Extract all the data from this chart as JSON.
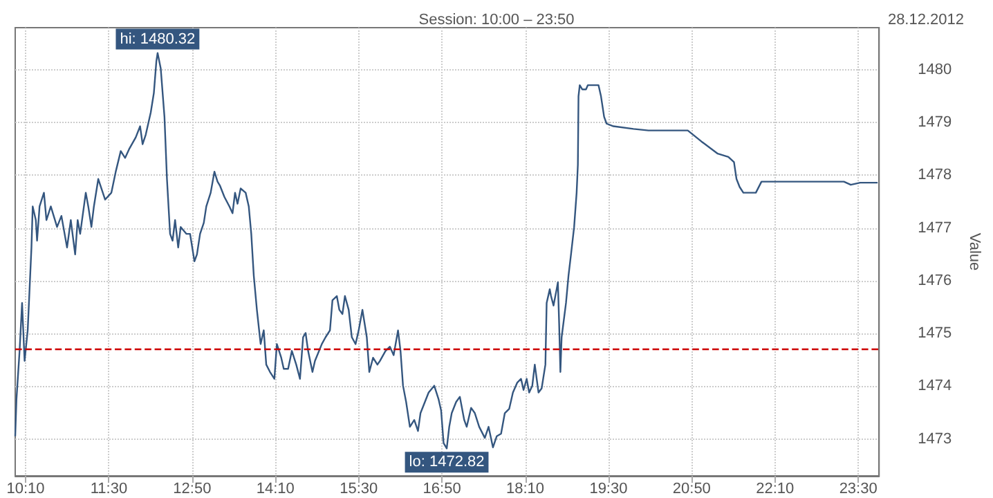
{
  "chart_data": {
    "type": "line",
    "subtitle": "Session: 10:00 – 23:50",
    "ylabel": "Value",
    "annotations": [
      "28.12.2012",
      {
        "text": "hi: 1480.32",
        "x": 12.28,
        "y": 1480.32
      },
      {
        "text": "lo: 1472.82",
        "x": 16.91,
        "y": 1472.82
      }
    ],
    "xlim": [
      10,
      23.8333
    ],
    "xticks": [
      {
        "value": 10.1667,
        "label": "10:10"
      },
      {
        "value": 11.5,
        "label": "11:30"
      },
      {
        "value": 12.8333,
        "label": "12:50"
      },
      {
        "value": 14.1667,
        "label": "14:10"
      },
      {
        "value": 15.5,
        "label": "15:30"
      },
      {
        "value": 16.8333,
        "label": "16:50"
      },
      {
        "value": 18.1667,
        "label": "18:10"
      },
      {
        "value": 19.5,
        "label": "19:30"
      },
      {
        "value": 20.8333,
        "label": "20:50"
      },
      {
        "value": 22.1667,
        "label": "22:10"
      },
      {
        "value": 23.5,
        "label": "23:30"
      }
    ],
    "ylim": [
      1472.3,
      1480.8
    ],
    "yticks": [
      1473,
      1474,
      1475,
      1476,
      1477,
      1478,
      1479,
      1480
    ],
    "grid": true,
    "marker": "none",
    "line_style": "solid",
    "ref_lines": [
      {
        "axis": "y",
        "value": 1474.7,
        "label": null,
        "color": "#cc0000",
        "line_style": "dashed"
      }
    ],
    "series": [
      {
        "color": "#34567f",
        "x": [
          10.0,
          10.02,
          10.07,
          10.11,
          10.15,
          10.2,
          10.26,
          10.28,
          10.33,
          10.35,
          10.39,
          10.46,
          10.5,
          10.57,
          10.67,
          10.74,
          10.83,
          10.89,
          10.96,
          11.0,
          11.04,
          11.13,
          11.17,
          11.22,
          11.26,
          11.33,
          11.44,
          11.54,
          11.61,
          11.69,
          11.76,
          11.83,
          11.93,
          12.0,
          12.04,
          12.09,
          12.17,
          12.22,
          12.26,
          12.28,
          12.33,
          12.39,
          12.43,
          12.48,
          12.52,
          12.56,
          12.61,
          12.65,
          12.74,
          12.8,
          12.87,
          12.91,
          12.96,
          13.02,
          13.06,
          13.13,
          13.19,
          13.24,
          13.28,
          13.35,
          13.43,
          13.48,
          13.52,
          13.56,
          13.61,
          13.69,
          13.74,
          13.78,
          13.82,
          13.87,
          13.93,
          13.98,
          14.02,
          14.08,
          14.15,
          14.19,
          14.26,
          14.3,
          14.37,
          14.43,
          14.5,
          14.56,
          14.61,
          14.65,
          14.69,
          14.76,
          14.8,
          14.91,
          14.97,
          15.04,
          15.08,
          15.15,
          15.19,
          15.24,
          15.28,
          15.34,
          15.39,
          15.45,
          15.5,
          15.56,
          15.63,
          15.67,
          15.73,
          15.8,
          15.84,
          15.93,
          16.0,
          16.06,
          16.13,
          16.17,
          16.21,
          16.26,
          16.32,
          16.39,
          16.45,
          16.49,
          16.56,
          16.62,
          16.71,
          16.78,
          16.82,
          16.86,
          16.91,
          16.95,
          16.99,
          17.06,
          17.12,
          17.19,
          17.23,
          17.3,
          17.36,
          17.43,
          17.52,
          17.58,
          17.65,
          17.71,
          17.78,
          17.84,
          17.91,
          17.97,
          18.04,
          18.1,
          18.14,
          18.19,
          18.23,
          18.28,
          18.32,
          18.38,
          18.43,
          18.49,
          18.51,
          18.56,
          18.58,
          18.62,
          18.67,
          18.69,
          18.71,
          18.73,
          18.75,
          18.82,
          18.86,
          18.9,
          18.95,
          18.99,
          19.01,
          19.02,
          19.04,
          19.08,
          19.14,
          19.17,
          19.34,
          19.38,
          19.43,
          19.47,
          19.58,
          19.9,
          20.14,
          20.77,
          20.99,
          21.25,
          21.42,
          21.51,
          21.55,
          21.6,
          21.66,
          21.71,
          21.86,
          21.95,
          22.29,
          23.27,
          23.38,
          23.53,
          23.81
        ],
        "values": [
          1473.05,
          1473.75,
          1474.67,
          1475.58,
          1474.48,
          1475.06,
          1476.63,
          1477.41,
          1477.15,
          1476.76,
          1477.41,
          1477.67,
          1477.15,
          1477.41,
          1477.02,
          1477.23,
          1476.63,
          1477.15,
          1476.5,
          1477.15,
          1476.89,
          1477.67,
          1477.41,
          1477.02,
          1477.41,
          1477.93,
          1477.54,
          1477.67,
          1478.07,
          1478.46,
          1478.33,
          1478.51,
          1478.72,
          1478.93,
          1478.59,
          1478.77,
          1479.19,
          1479.56,
          1480.16,
          1480.32,
          1480.03,
          1479.11,
          1477.93,
          1476.89,
          1476.76,
          1477.15,
          1476.63,
          1477.02,
          1476.89,
          1476.89,
          1476.37,
          1476.5,
          1476.89,
          1477.1,
          1477.41,
          1477.67,
          1478.07,
          1477.88,
          1477.8,
          1477.59,
          1477.41,
          1477.28,
          1477.67,
          1477.46,
          1477.75,
          1477.67,
          1477.41,
          1476.89,
          1476.1,
          1475.45,
          1474.8,
          1475.06,
          1474.41,
          1474.27,
          1474.14,
          1474.8,
          1474.54,
          1474.33,
          1474.33,
          1474.67,
          1474.41,
          1474.14,
          1474.93,
          1475.01,
          1474.67,
          1474.27,
          1474.48,
          1474.8,
          1474.93,
          1475.06,
          1475.63,
          1475.71,
          1475.45,
          1475.37,
          1475.71,
          1475.45,
          1474.93,
          1474.8,
          1475.06,
          1475.45,
          1474.93,
          1474.27,
          1474.54,
          1474.41,
          1474.48,
          1474.67,
          1474.75,
          1474.59,
          1475.06,
          1474.67,
          1474.01,
          1473.7,
          1473.23,
          1473.36,
          1473.15,
          1473.49,
          1473.7,
          1473.88,
          1474.01,
          1473.75,
          1473.54,
          1472.92,
          1472.82,
          1473.23,
          1473.49,
          1473.7,
          1473.8,
          1473.36,
          1473.23,
          1473.59,
          1473.49,
          1473.23,
          1473.02,
          1473.23,
          1472.84,
          1473.05,
          1473.1,
          1473.49,
          1473.57,
          1473.88,
          1474.07,
          1474.14,
          1473.93,
          1474.14,
          1473.88,
          1474.01,
          1474.41,
          1473.88,
          1473.96,
          1474.41,
          1475.58,
          1475.84,
          1475.71,
          1475.53,
          1475.84,
          1475.97,
          1475.19,
          1474.27,
          1474.93,
          1475.58,
          1476.1,
          1476.5,
          1477.02,
          1477.67,
          1478.2,
          1479.5,
          1479.71,
          1479.63,
          1479.63,
          1479.71,
          1479.71,
          1479.5,
          1479.11,
          1478.98,
          1478.93,
          1478.88,
          1478.85,
          1478.85,
          1478.64,
          1478.41,
          1478.35,
          1478.25,
          1477.93,
          1477.78,
          1477.67,
          1477.67,
          1477.67,
          1477.88,
          1477.88,
          1477.88,
          1477.82,
          1477.86,
          1477.86
        ]
      }
    ]
  }
}
